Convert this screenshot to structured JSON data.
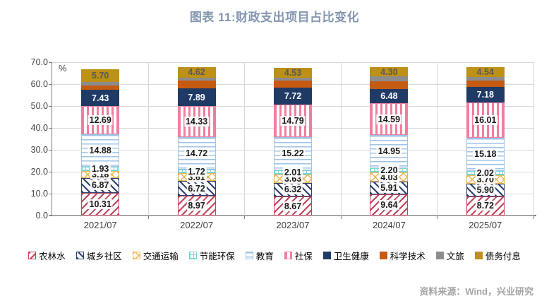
{
  "title": "图表 11:财政支出项目占比变化",
  "source_note": "资料来源：Wind，兴业研究",
  "colors": {
    "title": "#8496b0",
    "axis_text": "#404040",
    "gridline": "#d9d9d9",
    "source_text": "#a3a3a3"
  },
  "chart_data": {
    "type": "bar",
    "stacked": true,
    "title": "图表 11:财政支出项目占比变化",
    "unit": "%",
    "categories": [
      "2021/07",
      "2022/07",
      "2023/07",
      "2024/07",
      "2025/07"
    ],
    "ylim": [
      0,
      70
    ],
    "ytick_step": 10,
    "grid": true,
    "legend_position": "bottom",
    "series": [
      {
        "name": "农林水",
        "color": "#c0455c",
        "pattern": "diag-down",
        "show_labels": true,
        "label_style": "boxed",
        "values": [
          10.31,
          8.97,
          8.67,
          9.64,
          8.72
        ]
      },
      {
        "name": "城乡社区",
        "color": "#2e4172",
        "pattern": "diag-up",
        "show_labels": true,
        "label_style": "boxed",
        "values": [
          6.87,
          6.72,
          6.32,
          5.91,
          5.9
        ]
      },
      {
        "name": "交通运输",
        "color": "#efb24e",
        "pattern": "cross",
        "show_labels": true,
        "label_style": "boxed",
        "values": [
          3.18,
          3.61,
          3.63,
          4.03,
          3.7
        ]
      },
      {
        "name": "节能环保",
        "color": "#7bd6d6",
        "pattern": "grid",
        "show_labels": true,
        "label_style": "boxed",
        "values": [
          1.93,
          1.72,
          2.01,
          2.2,
          2.02
        ]
      },
      {
        "name": "教育",
        "color": "#9dc3e6",
        "pattern": "hlines",
        "show_labels": true,
        "label_style": "boxed",
        "values": [
          14.88,
          14.72,
          15.22,
          14.95,
          15.18
        ]
      },
      {
        "name": "社保",
        "color": "#f07e9e",
        "pattern": "vlines",
        "show_labels": true,
        "label_style": "boxed",
        "values": [
          12.69,
          14.33,
          14.79,
          14.59,
          16.01
        ]
      },
      {
        "name": "卫生健康",
        "color": "#203a66",
        "pattern": "solid",
        "show_labels": true,
        "label_style": "white",
        "values": [
          7.43,
          7.89,
          7.72,
          6.48,
          7.18
        ]
      },
      {
        "name": "科学技术",
        "color": "#c55a11",
        "pattern": "solid",
        "show_labels": false,
        "label_style": "none",
        "values": [
          2.2,
          3.5,
          3.2,
          3.6,
          2.9
        ]
      },
      {
        "name": "文旅",
        "color": "#8c8c8c",
        "pattern": "solid",
        "show_labels": false,
        "label_style": "none",
        "values": [
          1.5,
          1.6,
          1.4,
          2.0,
          1.5
        ]
      },
      {
        "name": "债务付息",
        "color": "#bd9016",
        "pattern": "solid",
        "show_labels": true,
        "label_style": "dark",
        "values": [
          5.7,
          4.62,
          4.53,
          4.3,
          4.54
        ]
      }
    ]
  }
}
